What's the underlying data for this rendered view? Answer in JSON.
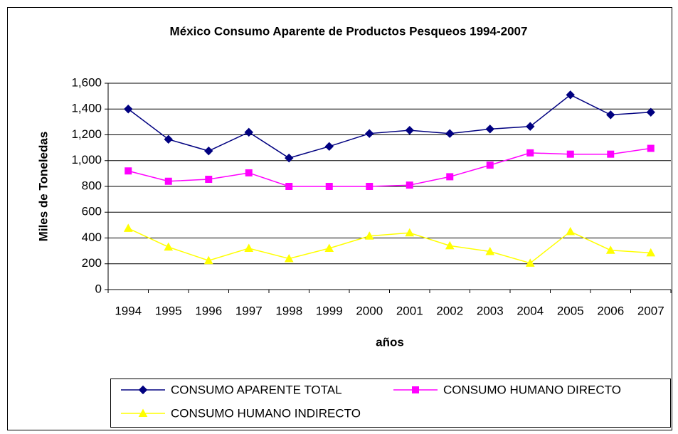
{
  "chart_data": {
    "type": "line",
    "title": "México Consumo Aparente de Productos Pesqueos 1994-2007",
    "xlabel": "años",
    "ylabel": "Miles de Toneledas",
    "categories": [
      "1994",
      "1995",
      "1996",
      "1997",
      "1998",
      "1999",
      "2000",
      "2001",
      "2002",
      "2003",
      "2004",
      "2005",
      "2006",
      "2007"
    ],
    "series": [
      {
        "name": "CONSUMO APARENTE TOTAL",
        "color": "#000080",
        "marker": "diamond",
        "values": [
          1400,
          1165,
          1075,
          1220,
          1020,
          1110,
          1210,
          1235,
          1210,
          1245,
          1265,
          1510,
          1355,
          1375
        ]
      },
      {
        "name": "CONSUMO HUMANO DIRECTO",
        "color": "#ff00ff",
        "marker": "square",
        "values": [
          920,
          840,
          855,
          905,
          800,
          800,
          800,
          810,
          875,
          965,
          1060,
          1050,
          1050,
          1095
        ]
      },
      {
        "name": "CONSUMO HUMANO INDIRECTO",
        "color": "#ffff00",
        "marker": "triangle",
        "values": [
          475,
          330,
          225,
          320,
          240,
          320,
          415,
          440,
          340,
          295,
          205,
          450,
          305,
          285
        ]
      }
    ],
    "ylim": [
      0,
      1600
    ],
    "yticks": [
      0,
      200,
      400,
      600,
      800,
      {
        "value": 1000,
        "label": "1,000"
      },
      {
        "value": 1200,
        "label": "1,200"
      },
      {
        "value": 1400,
        "label": "1,400"
      },
      {
        "value": 1600,
        "label": "1,600"
      }
    ],
    "grid": true,
    "legend": "bottom"
  }
}
